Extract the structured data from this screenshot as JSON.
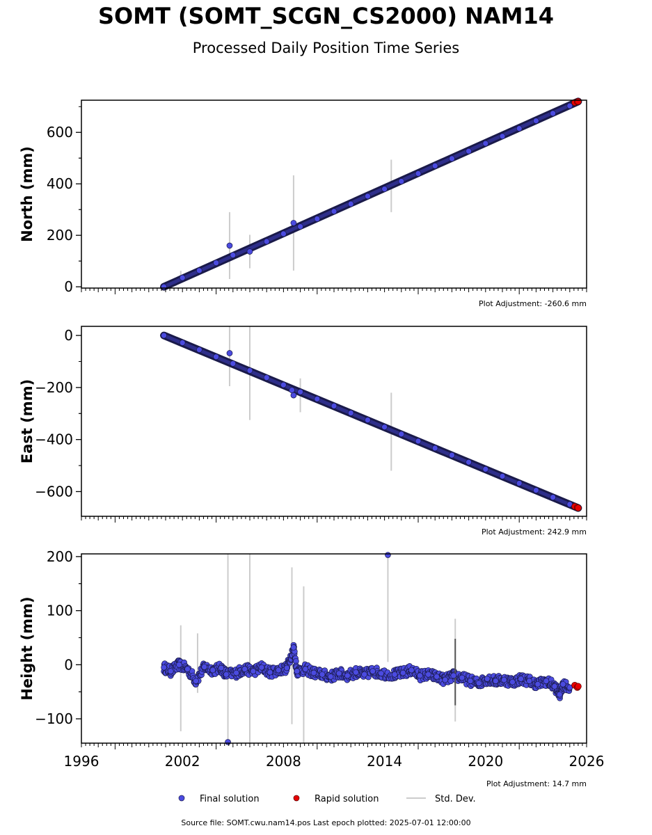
{
  "page": {
    "title": "SOMT (SOMT_SCGN_CS2000) NAM14",
    "subtitle": "Processed Daily Position Time Series",
    "source_label": "Source file: SOMT.cwu.nam14.pos",
    "last_epoch_label": "Last epoch plotted: 2025-07-01 12:00:00"
  },
  "colors": {
    "final": "#4b4be0",
    "final_edge": "#1a1a4a",
    "rapid": "#e60000",
    "stddev": "#cccccc",
    "axis": "#000000"
  },
  "chart_data": [
    {
      "type": "scatter",
      "ylabel": "North (mm)",
      "adjustment": "Plot Adjustment: -260.6 mm",
      "xlim": [
        1996,
        2026
      ],
      "ylim": [
        -5,
        725
      ],
      "yticks": [
        0,
        200,
        400,
        600
      ],
      "ytick_labels": [
        "0",
        "200",
        "400",
        "600"
      ],
      "trend": {
        "start": [
          2000.9,
          0
        ],
        "end": [
          2025.5,
          720
        ]
      },
      "series": [
        {
          "name": "Final solution",
          "points": [
            [
              2000.9,
              0
            ],
            [
              2002.0,
              35
            ],
            [
              2003.0,
              63
            ],
            [
              2004.0,
              93
            ],
            [
              2004.8,
              160
            ],
            [
              2005.0,
              123
            ],
            [
              2006.0,
              137
            ],
            [
              2007.0,
              176
            ],
            [
              2008.0,
              206
            ],
            [
              2008.6,
              248
            ],
            [
              2009.0,
              234
            ],
            [
              2010.0,
              264
            ],
            [
              2011.0,
              293
            ],
            [
              2012.0,
              322
            ],
            [
              2013.0,
              352
            ],
            [
              2014.0,
              380
            ],
            [
              2015.0,
              410
            ],
            [
              2016.0,
              440
            ],
            [
              2017.0,
              470
            ],
            [
              2018.0,
              498
            ],
            [
              2019.0,
              527
            ],
            [
              2020.0,
              557
            ],
            [
              2021.0,
              585
            ],
            [
              2022.0,
              615
            ],
            [
              2023.0,
              645
            ],
            [
              2024.0,
              674
            ],
            [
              2025.0,
              703
            ]
          ]
        },
        {
          "name": "Rapid solution",
          "points": [
            [
              2025.3,
              716
            ],
            [
              2025.45,
              719
            ],
            [
              2025.5,
              720
            ]
          ]
        },
        {
          "name": "Std. Dev.",
          "bars": [
            [
              2001.9,
              42,
              20
            ],
            [
              2004.8,
              160,
              130
            ],
            [
              2006.0,
              137,
              65
            ],
            [
              2008.6,
              248,
              185
            ],
            [
              2014.4,
              392,
              102
            ]
          ]
        }
      ]
    },
    {
      "type": "scatter",
      "ylabel": "East (mm)",
      "adjustment": "Plot Adjustment: 242.9 mm",
      "xlim": [
        1996,
        2026
      ],
      "ylim": [
        -695,
        35
      ],
      "yticks": [
        0,
        -200,
        -400,
        -600
      ],
      "ytick_labels": [
        "0",
        "−200",
        "−400",
        "−600"
      ],
      "trend": {
        "start": [
          2000.9,
          0
        ],
        "end": [
          2025.5,
          -663
        ]
      },
      "series": [
        {
          "name": "Final solution",
          "points": [
            [
              2000.9,
              0
            ],
            [
              2002.0,
              -28
            ],
            [
              2003.0,
              -55
            ],
            [
              2004.0,
              -82
            ],
            [
              2004.8,
              -68
            ],
            [
              2005.0,
              -108
            ],
            [
              2006.0,
              -135
            ],
            [
              2007.0,
              -162
            ],
            [
              2008.0,
              -190
            ],
            [
              2008.5,
              -210
            ],
            [
              2008.6,
              -230
            ],
            [
              2009.0,
              -217
            ],
            [
              2010.0,
              -244
            ],
            [
              2011.0,
              -271
            ],
            [
              2012.0,
              -298
            ],
            [
              2013.0,
              -325
            ],
            [
              2014.0,
              -352
            ],
            [
              2015.0,
              -379
            ],
            [
              2016.0,
              -406
            ],
            [
              2017.0,
              -433
            ],
            [
              2018.0,
              -460
            ],
            [
              2019.0,
              -487
            ],
            [
              2020.0,
              -514
            ],
            [
              2021.0,
              -541
            ],
            [
              2022.0,
              -568
            ],
            [
              2023.0,
              -595
            ],
            [
              2024.0,
              -622
            ],
            [
              2025.0,
              -649
            ]
          ]
        },
        {
          "name": "Rapid solution",
          "points": [
            [
              2025.3,
              -657
            ],
            [
              2025.45,
              -661
            ],
            [
              2025.5,
              -663
            ]
          ]
        },
        {
          "name": "Std. Dev.",
          "bars": [
            [
              2004.8,
              -80,
              115
            ],
            [
              2006.0,
              -145,
              180
            ],
            [
              2009.0,
              -230,
              65
            ],
            [
              2014.4,
              -370,
              150
            ]
          ]
        }
      ]
    },
    {
      "type": "scatter",
      "ylabel": "Height (mm)",
      "adjustment": "Plot Adjustment: 14.7 mm",
      "xlim": [
        1996,
        2026
      ],
      "ylim": [
        -145,
        205
      ],
      "yticks": [
        -100,
        0,
        100,
        200
      ],
      "ytick_labels": [
        "−100",
        "0",
        "100",
        "200"
      ],
      "xticks": [
        1996,
        2002,
        2008,
        2014,
        2020,
        2026
      ],
      "xtick_labels": [
        "1996",
        "2002",
        "2008",
        "2014",
        "2020",
        "2026"
      ],
      "series": [
        {
          "name": "Final solution",
          "points": [
            [
              2000.9,
              -5
            ],
            [
              2001.3,
              -12
            ],
            [
              2001.8,
              0
            ],
            [
              2002.3,
              -8
            ],
            [
              2002.8,
              -30
            ],
            [
              2003.3,
              -4
            ],
            [
              2003.8,
              -10
            ],
            [
              2004.3,
              -6
            ],
            [
              2004.6,
              -18
            ],
            [
              2004.7,
              -143
            ],
            [
              2005.2,
              -15
            ],
            [
              2005.7,
              -8
            ],
            [
              2006.2,
              -12
            ],
            [
              2006.7,
              -5
            ],
            [
              2007.2,
              -14
            ],
            [
              2007.7,
              -10
            ],
            [
              2008.2,
              -6
            ],
            [
              2008.6,
              32
            ],
            [
              2008.8,
              -12
            ],
            [
              2009.3,
              -8
            ],
            [
              2009.8,
              -15
            ],
            [
              2010.3,
              -18
            ],
            [
              2010.8,
              -22
            ],
            [
              2011.3,
              -16
            ],
            [
              2011.8,
              -20
            ],
            [
              2012.3,
              -14
            ],
            [
              2012.8,
              -18
            ],
            [
              2013.3,
              -12
            ],
            [
              2013.8,
              -16
            ],
            [
              2014.2,
              203
            ],
            [
              2014.6,
              -18
            ],
            [
              2015.1,
              -15
            ],
            [
              2015.6,
              -10
            ],
            [
              2016.1,
              -20
            ],
            [
              2016.6,
              -18
            ],
            [
              2017.1,
              -22
            ],
            [
              2017.6,
              -28
            ],
            [
              2018.1,
              -20
            ],
            [
              2018.6,
              -24
            ],
            [
              2019.1,
              -30
            ],
            [
              2019.6,
              -34
            ],
            [
              2020.1,
              -26
            ],
            [
              2020.6,
              -30
            ],
            [
              2021.1,
              -28
            ],
            [
              2021.6,
              -32
            ],
            [
              2022.1,
              -26
            ],
            [
              2022.6,
              -30
            ],
            [
              2023.1,
              -36
            ],
            [
              2023.6,
              -30
            ],
            [
              2024.1,
              -40
            ],
            [
              2024.4,
              -55
            ],
            [
              2024.6,
              -36
            ],
            [
              2025.0,
              -42
            ]
          ]
        },
        {
          "name": "Rapid solution",
          "points": [
            [
              2025.3,
              -38
            ],
            [
              2025.45,
              -42
            ],
            [
              2025.5,
              -40
            ]
          ]
        },
        {
          "name": "Std. Dev.",
          "bars": [
            [
              2001.9,
              -25,
              98
            ],
            [
              2002.9,
              3,
              55
            ],
            [
              2004.7,
              30,
              180
            ],
            [
              2006.0,
              30,
              180
            ],
            [
              2008.5,
              35,
              145
            ],
            [
              2009.2,
              0,
              145
            ],
            [
              2014.2,
              105,
              100
            ],
            [
              2018.2,
              -10,
              95
            ]
          ]
        }
      ]
    }
  ],
  "legend": {
    "final_label": "Final solution",
    "rapid_label": "Rapid solution",
    "stddev_label": "Std. Dev."
  }
}
